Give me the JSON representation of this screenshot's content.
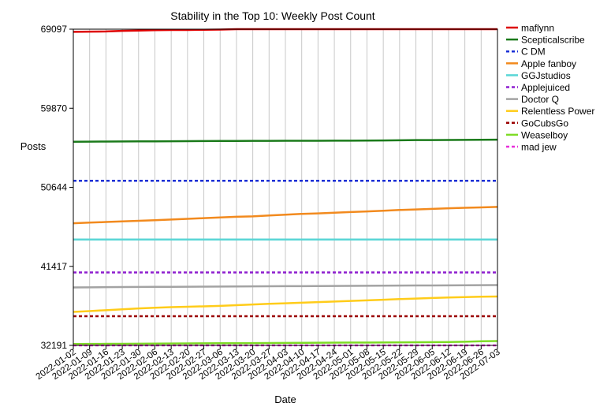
{
  "chart_data": {
    "type": "line",
    "title": "Stability in the Top 10: Weekly Post Count",
    "xlabel": "Date",
    "ylabel": "Posts",
    "ylim": [
      32191,
      69097
    ],
    "yticks": [
      32191,
      41417,
      50644,
      59870,
      69097
    ],
    "grid": "vertical",
    "legend_position": "right",
    "x": [
      "2022-01-02",
      "2022-01-09",
      "2022-01-16",
      "2022-01-23",
      "2022-01-30",
      "2022-02-06",
      "2022-02-13",
      "2022-02-20",
      "2022-02-27",
      "2022-03-06",
      "2022-03-13",
      "2022-03-20",
      "2022-03-27",
      "2022-04-03",
      "2022-04-10",
      "2022-04-17",
      "2022-04-24",
      "2022-05-01",
      "2022-05-08",
      "2022-05-15",
      "2022-05-22",
      "2022-05-29",
      "2022-06-05",
      "2022-06-12",
      "2022-06-19",
      "2022-06-26",
      "2022-07-03"
    ],
    "series": [
      {
        "name": "maflynn",
        "color": "#dd0000",
        "dash": "solid",
        "values": [
          68790,
          68810,
          68830,
          68900,
          68940,
          68980,
          69000,
          69010,
          69030,
          69050,
          69097,
          69097,
          69097,
          69097,
          69097,
          69097,
          69097,
          69097,
          69097,
          69097,
          69097,
          69097,
          69097,
          69097,
          69097,
          69097,
          69097
        ]
      },
      {
        "name": "Scepticalscribe",
        "color": "#1a7a1a",
        "dash": "solid",
        "values": [
          55960,
          55970,
          55980,
          55990,
          56000,
          56010,
          56020,
          56030,
          56040,
          56050,
          56055,
          56060,
          56065,
          56070,
          56075,
          56080,
          56085,
          56090,
          56100,
          56110,
          56130,
          56150,
          56160,
          56170,
          56180,
          56190,
          56200
        ]
      },
      {
        "name": "C DM",
        "color": "#1a2fd6",
        "dash": "dashed",
        "values": [
          51400,
          51400,
          51400,
          51400,
          51400,
          51400,
          51400,
          51400,
          51400,
          51400,
          51400,
          51400,
          51400,
          51400,
          51400,
          51400,
          51400,
          51400,
          51400,
          51400,
          51400,
          51400,
          51400,
          51400,
          51400,
          51400,
          51400
        ]
      },
      {
        "name": "Apple fanboy",
        "color": "#f28a1e",
        "dash": "solid",
        "values": [
          46450,
          46520,
          46590,
          46660,
          46730,
          46800,
          46880,
          46960,
          47040,
          47120,
          47200,
          47250,
          47350,
          47450,
          47540,
          47600,
          47680,
          47760,
          47830,
          47900,
          48000,
          48060,
          48130,
          48190,
          48250,
          48300,
          48360
        ]
      },
      {
        "name": "GGJstudios",
        "color": "#5ad6d6",
        "dash": "solid",
        "values": [
          44550,
          44550,
          44550,
          44550,
          44550,
          44550,
          44550,
          44550,
          44550,
          44550,
          44550,
          44550,
          44550,
          44550,
          44550,
          44550,
          44550,
          44550,
          44550,
          44550,
          44550,
          44550,
          44550,
          44550,
          44550,
          44550,
          44550
        ]
      },
      {
        "name": "Applejuiced",
        "color": "#8e1ecf",
        "dash": "dashed",
        "values": [
          40700,
          40700,
          40700,
          40700,
          40700,
          40700,
          40700,
          40700,
          40700,
          40700,
          40700,
          40700,
          40700,
          40700,
          40700,
          40700,
          40700,
          40700,
          40700,
          40700,
          40700,
          40700,
          40700,
          40700,
          40700,
          40700,
          40700
        ]
      },
      {
        "name": "Doctor Q",
        "color": "#a3a3a3",
        "dash": "solid",
        "values": [
          38960,
          38970,
          38990,
          39000,
          39010,
          39020,
          39030,
          39040,
          39050,
          39060,
          39070,
          39080,
          39090,
          39100,
          39110,
          39120,
          39130,
          39140,
          39150,
          39160,
          39170,
          39180,
          39190,
          39200,
          39210,
          39220,
          39230
        ]
      },
      {
        "name": "Relentless Power",
        "color": "#ffcc1a",
        "dash": "solid",
        "values": [
          36100,
          36200,
          36300,
          36400,
          36500,
          36580,
          36650,
          36700,
          36750,
          36800,
          36880,
          36960,
          37040,
          37100,
          37170,
          37240,
          37310,
          37380,
          37450,
          37520,
          37600,
          37660,
          37720,
          37780,
          37830,
          37870,
          37900
        ]
      },
      {
        "name": "GoCubsGo",
        "color": "#9b0000",
        "dash": "dashed",
        "values": [
          35600,
          35600,
          35600,
          35600,
          35600,
          35600,
          35600,
          35600,
          35600,
          35600,
          35600,
          35600,
          35600,
          35600,
          35600,
          35600,
          35600,
          35600,
          35600,
          35600,
          35600,
          35600,
          35600,
          35600,
          35600,
          35600,
          35600
        ]
      },
      {
        "name": "Weaselboy",
        "color": "#7edc26",
        "dash": "solid",
        "values": [
          32350,
          32360,
          32370,
          32380,
          32390,
          32400,
          32410,
          32420,
          32430,
          32440,
          32450,
          32460,
          32470,
          32480,
          32490,
          32500,
          32510,
          32520,
          32530,
          32540,
          32550,
          32560,
          32570,
          32580,
          32620,
          32680,
          32700
        ]
      },
      {
        "name": "mad jew",
        "color": "#e830d9",
        "dash": "dashed",
        "values": [
          32191,
          32191,
          32191,
          32191,
          32191,
          32191,
          32191,
          32191,
          32191,
          32191,
          32191,
          32191,
          32191,
          32191,
          32191,
          32191,
          32191,
          32191,
          32191,
          32191,
          32191,
          32191,
          32191,
          32191,
          32191,
          32191,
          32191
        ]
      }
    ]
  }
}
